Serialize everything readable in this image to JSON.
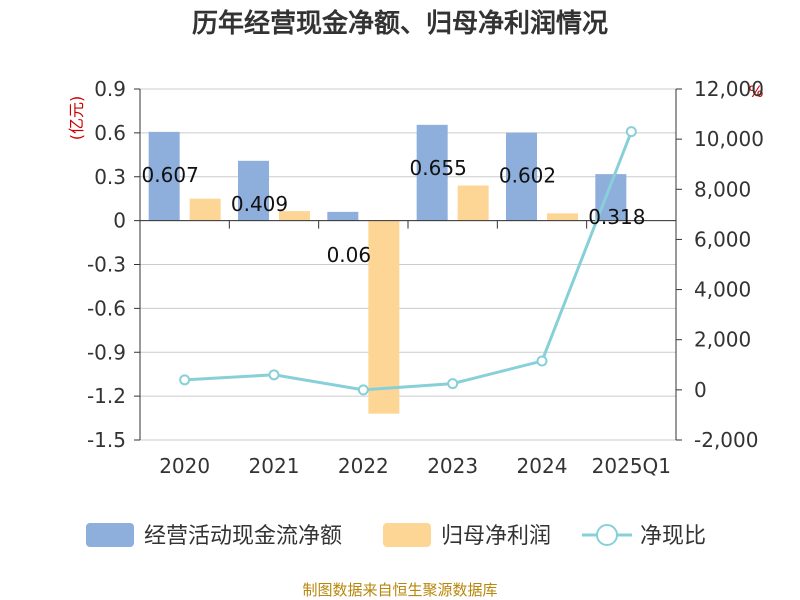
{
  "chart_data": {
    "type": "bar",
    "title": "历年经营现金净额、归母净利润情况",
    "categories": [
      "2020",
      "2021",
      "2022",
      "2023",
      "2024",
      "2025Q1"
    ],
    "left_unit": "(亿元)",
    "right_unit": "%",
    "left_ticks": [
      "0.9",
      "0.6",
      "0.3",
      "0",
      "-0.3",
      "-0.6",
      "-0.9",
      "-1.2",
      "-1.5"
    ],
    "right_ticks": [
      "12,000",
      "10,000",
      "8,000",
      "6,000",
      "4,000",
      "2,000",
      "0",
      "-2,000"
    ],
    "ylim_left": [
      -1.5,
      0.9
    ],
    "ylim_right": [
      -2000,
      12000
    ],
    "series": [
      {
        "name": "经营活动现金流净额",
        "kind": "bar",
        "axis": "left",
        "color": "#8eaedc",
        "values": [
          0.607,
          0.409,
          0.06,
          0.655,
          0.602,
          0.318
        ],
        "labels": [
          "0.607",
          "0.409",
          "0.06",
          "0.655",
          "0.602",
          "0.318"
        ]
      },
      {
        "name": "归母净利润",
        "kind": "bar",
        "axis": "left",
        "color": "#fdd696",
        "values": [
          0.15,
          0.065,
          -1.32,
          0.24,
          0.05,
          0.0
        ]
      },
      {
        "name": "净现比",
        "kind": "line",
        "axis": "right",
        "color": "#88d0d8",
        "values": [
          400,
          600,
          0,
          250,
          1150,
          10300
        ]
      }
    ],
    "legend_position": "bottom",
    "grid": true
  },
  "source": "制图数据来自恒生聚源数据库"
}
